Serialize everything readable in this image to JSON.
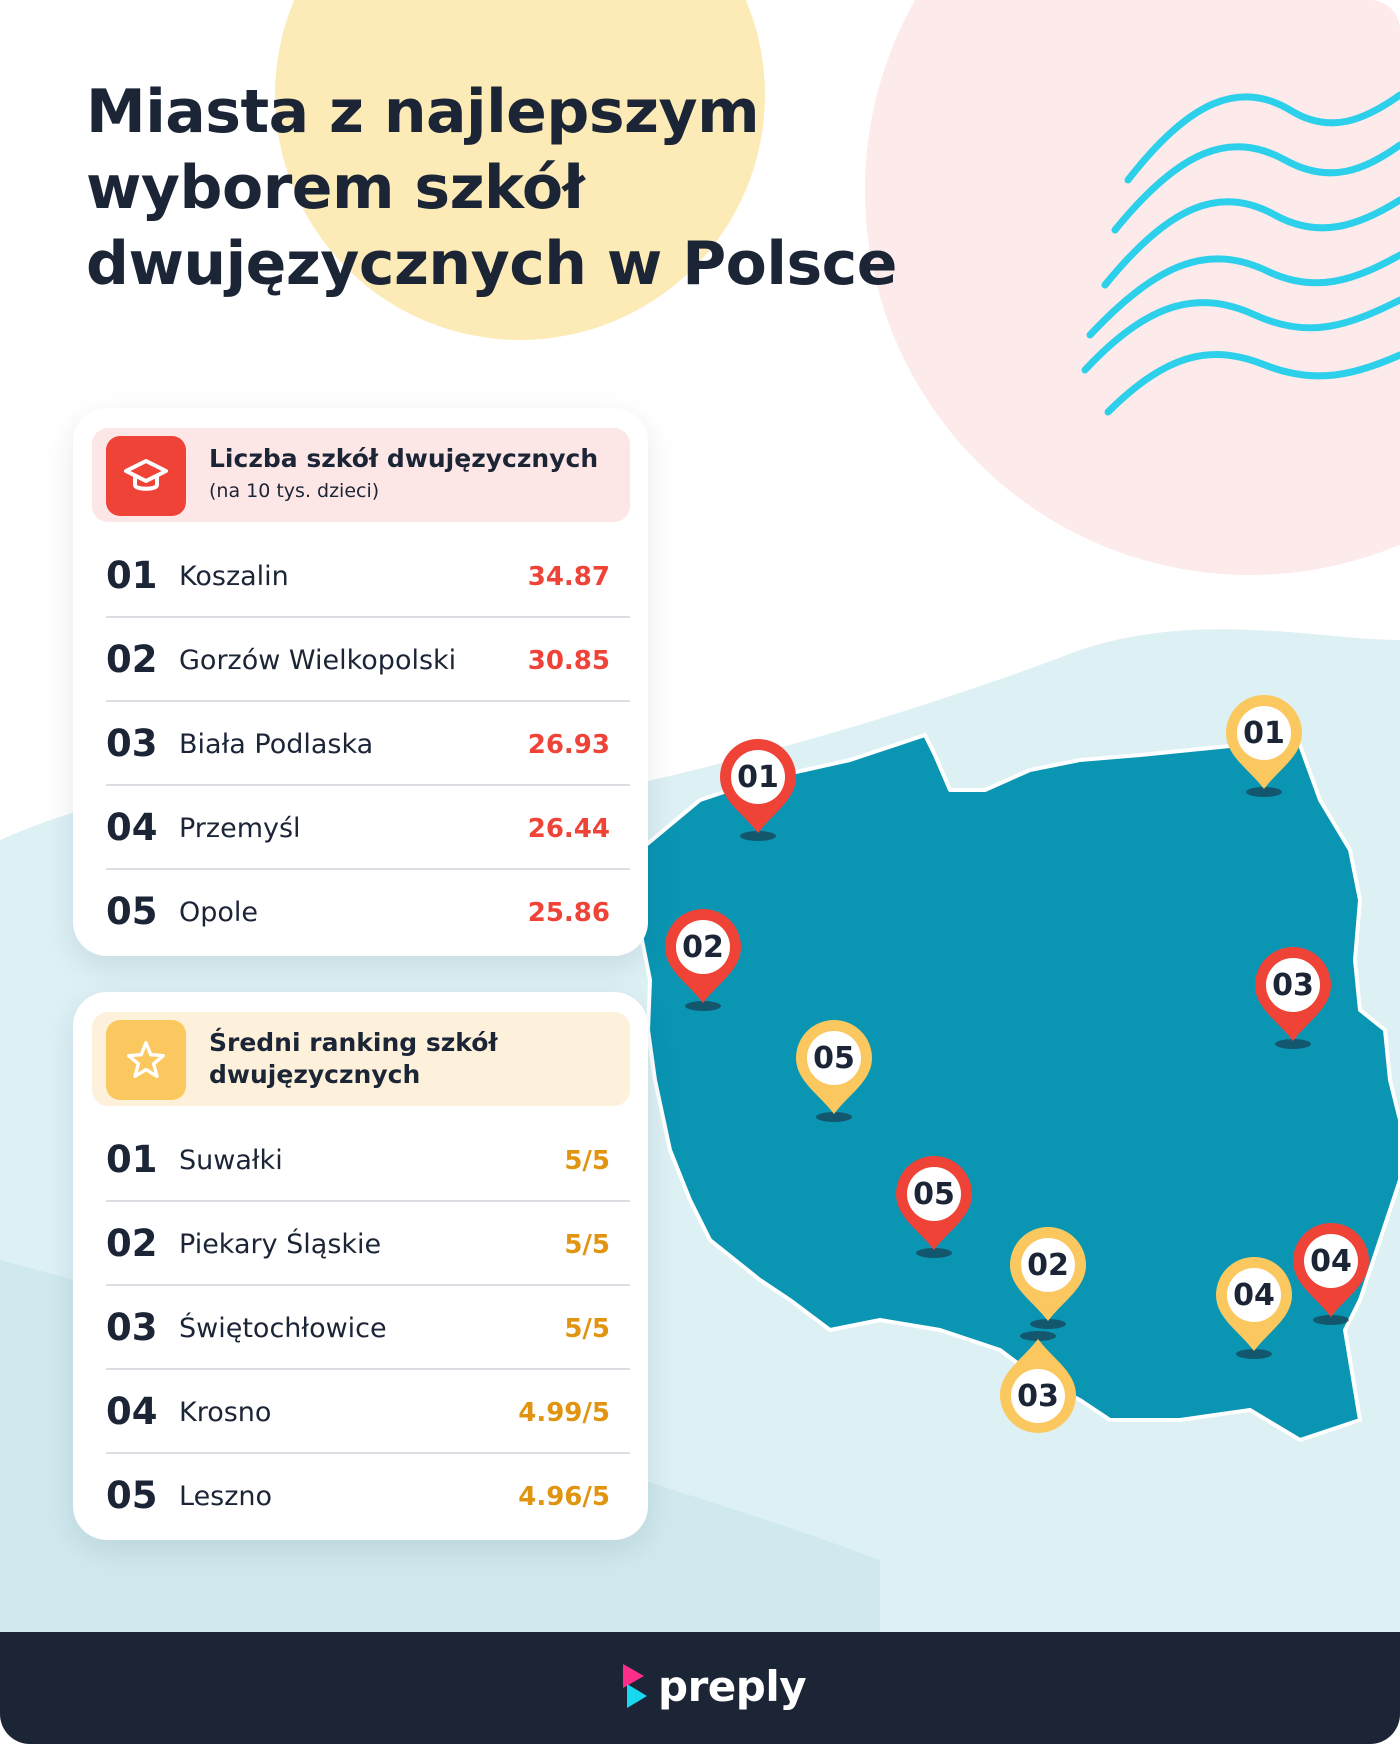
{
  "title_lines": [
    "Miasta z najlepszym",
    "wyborem szkół",
    "dwujęzycznych w Polsce"
  ],
  "card1": {
    "icon": "graduation-cap-icon",
    "title": "Liczba szkół dwujęzycznych",
    "subtitle": "(na 10 tys. dzieci)",
    "accent": "#ef4338",
    "rows": [
      {
        "rank": "01",
        "city": "Koszalin",
        "value": "34.87"
      },
      {
        "rank": "02",
        "city": "Gorzów Wielkopolski",
        "value": "30.85"
      },
      {
        "rank": "03",
        "city": "Biała Podlaska",
        "value": "26.93"
      },
      {
        "rank": "04",
        "city": "Przemyśl",
        "value": "26.44"
      },
      {
        "rank": "05",
        "city": "Opole",
        "value": "25.86"
      }
    ]
  },
  "card2": {
    "icon": "star-icon",
    "title": "Średni ranking szkół dwujęzycznych",
    "accent": "#fbc85f",
    "rows": [
      {
        "rank": "01",
        "city": "Suwałki",
        "value": "5/5"
      },
      {
        "rank": "02",
        "city": "Piekary Śląskie",
        "value": "5/5"
      },
      {
        "rank": "03",
        "city": "Świętochłowice",
        "value": "5/5"
      },
      {
        "rank": "04",
        "city": "Krosno",
        "value": "4.99/5"
      },
      {
        "rank": "05",
        "city": "Leszno",
        "value": "4.96/5"
      }
    ]
  },
  "map_pins": {
    "red": [
      "01",
      "02",
      "03",
      "04",
      "05"
    ],
    "yellow": [
      "01",
      "02",
      "03",
      "04",
      "05"
    ]
  },
  "colors": {
    "red_pin": "#ef4338",
    "yellow_pin": "#fbc85f",
    "map_fill": "#0a95b3",
    "title_text": "#1b2536",
    "footer_bg": "#1b2536"
  },
  "footer": {
    "brand": "preply"
  }
}
